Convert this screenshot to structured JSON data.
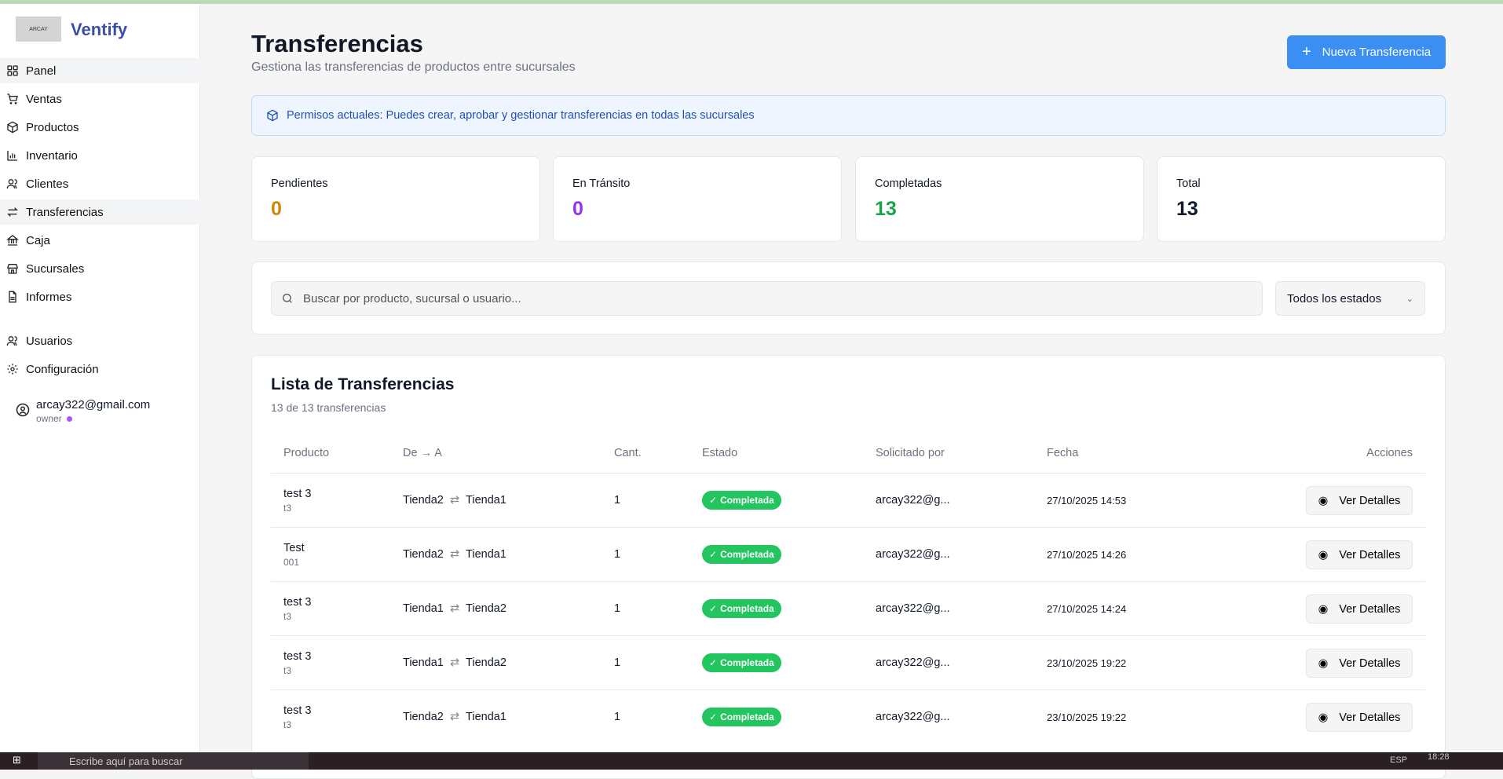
{
  "app": {
    "name": "Ventify",
    "logo_text": "ARCAY"
  },
  "sidebar": {
    "items": [
      {
        "label": "Panel",
        "icon": "grid-icon"
      },
      {
        "label": "Ventas",
        "icon": "cart-icon"
      },
      {
        "label": "Productos",
        "icon": "box-icon"
      },
      {
        "label": "Inventario",
        "icon": "bar-chart-icon"
      },
      {
        "label": "Clientes",
        "icon": "users-icon"
      },
      {
        "label": "Transferencias",
        "icon": "transfer-icon"
      },
      {
        "label": "Caja",
        "icon": "bank-icon"
      },
      {
        "label": "Sucursales",
        "icon": "store-icon"
      },
      {
        "label": "Informes",
        "icon": "file-icon"
      }
    ],
    "secondary": [
      {
        "label": "Usuarios",
        "icon": "users-icon"
      },
      {
        "label": "Configuración",
        "icon": "gear-icon"
      }
    ],
    "user": {
      "email": "arcay322@gmail.com",
      "role": "owner"
    }
  },
  "header": {
    "title": "Transferencias",
    "subtitle": "Gestiona las transferencias de productos entre sucursales",
    "new_button": "Nueva Transferencia"
  },
  "banner": {
    "text": "Permisos actuales: Puedes crear, aprobar y gestionar transferencias en todas las sucursales"
  },
  "stats": [
    {
      "label": "Pendientes",
      "value": "0",
      "color": "#ca8a04"
    },
    {
      "label": "En Tránsito",
      "value": "0",
      "color": "#9333ea"
    },
    {
      "label": "Completadas",
      "value": "13",
      "color": "#16a34a"
    },
    {
      "label": "Total",
      "value": "13",
      "color": "#111827"
    }
  ],
  "filters": {
    "search_placeholder": "Buscar por producto, sucursal o usuario...",
    "status_selected": "Todos los estados"
  },
  "list": {
    "title": "Lista de Transferencias",
    "subtitle": "13 de 13 transferencias",
    "columns": [
      "Producto",
      "De → A",
      "Cant.",
      "Estado",
      "Solicitado por",
      "Fecha",
      "Acciones"
    ],
    "action_label": "Ver Detalles",
    "rows": [
      {
        "product": "test 3",
        "code": "t3",
        "from": "Tienda2",
        "to": "Tienda1",
        "qty": "1",
        "status": "Completada",
        "by": "arcay322@g...",
        "date": "27/10/2025 14:53"
      },
      {
        "product": "Test",
        "code": "001",
        "from": "Tienda2",
        "to": "Tienda1",
        "qty": "1",
        "status": "Completada",
        "by": "arcay322@g...",
        "date": "27/10/2025 14:26"
      },
      {
        "product": "test 3",
        "code": "t3",
        "from": "Tienda1",
        "to": "Tienda2",
        "qty": "1",
        "status": "Completada",
        "by": "arcay322@g...",
        "date": "27/10/2025 14:24"
      },
      {
        "product": "test 3",
        "code": "t3",
        "from": "Tienda1",
        "to": "Tienda2",
        "qty": "1",
        "status": "Completada",
        "by": "arcay322@g...",
        "date": "23/10/2025 19:22"
      },
      {
        "product": "test 3",
        "code": "t3",
        "from": "Tienda2",
        "to": "Tienda1",
        "qty": "1",
        "status": "Completada",
        "by": "arcay322@g...",
        "date": "23/10/2025 19:22"
      }
    ]
  },
  "taskbar": {
    "search_placeholder": "Escribe aquí para buscar",
    "time": "18:28",
    "lang": "ESP"
  }
}
